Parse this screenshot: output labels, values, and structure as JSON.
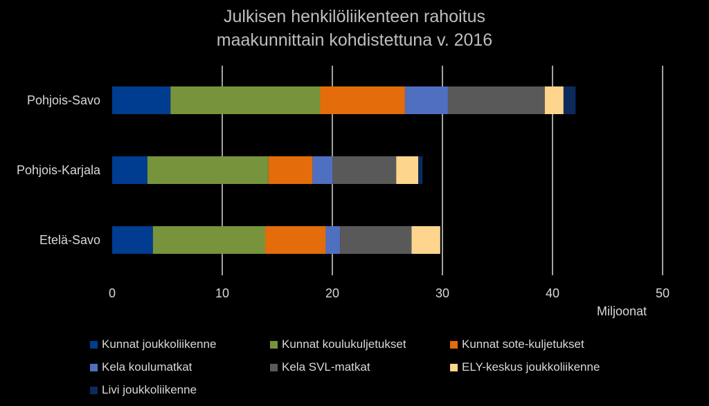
{
  "chart_data": {
    "type": "bar",
    "orientation": "horizontal",
    "stacked": true,
    "title": "Julkisen henkilöliikenteen rahoitus maakunnittain kohdistettuna v. 2016",
    "title_lines": [
      "Julkisen henkilöliikenteen rahoitus",
      "maakunnittain kohdistettuna v. 2016"
    ],
    "xlabel": "Miljoonat",
    "xlim": [
      0,
      50
    ],
    "xticks": [
      0,
      10,
      20,
      30,
      40,
      50
    ],
    "grid": true,
    "legend_position": "bottom",
    "categories": [
      "Pohjois-Savo",
      "Pohjois-Karjala",
      "Etelä-Savo"
    ],
    "series": [
      {
        "name": "Kunnat joukkoliikenne",
        "color": "#003c8f",
        "values": [
          5.3,
          3.2,
          3.7
        ]
      },
      {
        "name": "Kunnat koulukuljetukset",
        "color": "#77933c",
        "values": [
          13.6,
          11.0,
          10.2
        ]
      },
      {
        "name": "Kunnat sote-kuljetukset",
        "color": "#e46c0a",
        "values": [
          7.7,
          4.0,
          5.5
        ]
      },
      {
        "name": "Kela koulumatkat",
        "color": "#4f6fc1",
        "values": [
          3.9,
          1.8,
          1.3
        ]
      },
      {
        "name": "Kela SVL-matkat",
        "color": "#595959",
        "values": [
          8.8,
          5.8,
          6.5
        ]
      },
      {
        "name": "ELY-keskus joukkoliikenne",
        "color": "#fdd58d",
        "values": [
          1.7,
          2.0,
          2.6
        ]
      },
      {
        "name": "Livi joukkoliikenne",
        "color": "#0d2a5c",
        "values": [
          1.1,
          0.4,
          0.0
        ]
      }
    ]
  }
}
